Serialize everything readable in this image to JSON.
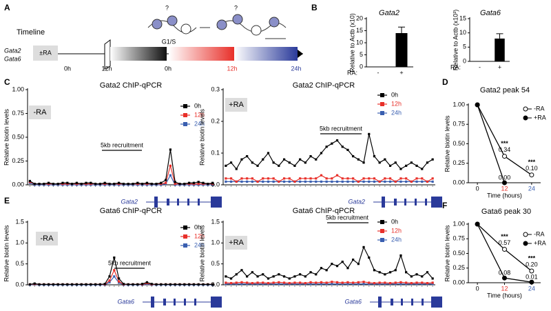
{
  "timeline": {
    "label": "A",
    "title": "Timeline",
    "genes": [
      "Gata2",
      "Gata6"
    ],
    "treatment": "±RA",
    "stage": "G1/S",
    "question": "?",
    "times": [
      "0h",
      "12h",
      "0h",
      "12h",
      "24h"
    ]
  },
  "chart_data": [
    {
      "type": "bar",
      "label": "B",
      "title": "Gata2",
      "ylabel": "Relative to Actb (x10)",
      "xlabel": "RA:",
      "categories": [
        "-",
        "+"
      ],
      "values": [
        0,
        14
      ],
      "errors": [
        0,
        2.5
      ],
      "color": "#000000",
      "ylim": [
        0,
        20
      ],
      "yticks": [
        0,
        5,
        10,
        15,
        20
      ]
    },
    {
      "type": "bar",
      "title": "Gata6",
      "ylabel": "Relative to Actb (x10³)",
      "xlabel": "RA:",
      "categories": [
        "-",
        "+"
      ],
      "values": [
        0,
        8
      ],
      "errors": [
        0,
        1.7
      ],
      "color": "#000000",
      "ylim": [
        0,
        15
      ],
      "yticks": [
        0,
        5,
        10,
        15
      ]
    },
    {
      "type": "profile",
      "label": "C",
      "title": "Gata2 ChIP-qPCR",
      "ylabel": "Relative biotin levels",
      "condition": "-RA",
      "annotation": "5kb recruitment",
      "gene": "Gata2",
      "series": [
        {
          "name": "0h",
          "color": "#000000",
          "values": [
            0.04,
            0.01,
            0.01,
            0.01,
            0.02,
            0.01,
            0.01,
            0.02,
            0.02,
            0.01,
            0.02,
            0.01,
            0.02,
            0.02,
            0.01,
            0.01,
            0.02,
            0.01,
            0.01,
            0.02,
            0.01,
            0.01,
            0.01,
            0.02,
            0.01,
            0.02,
            0.01,
            0.01,
            0.02,
            0.05,
            0.37,
            0.03,
            0.01,
            0.01,
            0.02,
            0.02,
            0.03,
            0.02,
            0.01,
            0.02
          ]
        },
        {
          "name": "12h",
          "color": "#e8302a",
          "values": [
            0.03,
            0.01,
            0.01,
            0.01,
            0.01,
            0.01,
            0.01,
            0.01,
            0.01,
            0.01,
            0.01,
            0.01,
            0.01,
            0.01,
            0.01,
            0.01,
            0.01,
            0.01,
            0.01,
            0.01,
            0.01,
            0.01,
            0.01,
            0.01,
            0.01,
            0.01,
            0.01,
            0.01,
            0.01,
            0.02,
            0.2,
            0.01,
            0.01,
            0.01,
            0.01,
            0.01,
            0.01,
            0.01,
            0.01,
            0.01
          ]
        },
        {
          "name": "24h",
          "color": "#3a5fb0",
          "values": [
            0.02,
            0,
            0,
            0,
            0,
            0,
            0,
            0,
            0,
            0,
            0,
            0,
            0,
            0,
            0,
            0,
            0,
            0,
            0,
            0,
            0,
            0,
            0,
            0,
            0,
            0,
            0,
            0,
            0,
            0.01,
            0.1,
            0,
            0,
            0,
            0,
            0,
            0,
            0,
            0,
            0
          ]
        }
      ],
      "ylim": [
        0,
        1
      ],
      "yticks": [
        {
          "value": 0,
          "label": "0.00"
        },
        {
          "value": 0.25,
          "label": "0.25"
        },
        {
          "value": 0.5,
          "label": "0.50"
        },
        {
          "value": 0.75,
          "label": "0.75"
        },
        {
          "value": 1,
          "label": "1.00"
        }
      ]
    },
    {
      "type": "profile",
      "title": "Gata2 ChIP-qPCR",
      "ylabel": "Relative biotin levels",
      "condition": "+RA",
      "annotation": "5kb recruitment",
      "gene": "Gata2",
      "series": [
        {
          "name": "0h",
          "color": "#000000",
          "values": [
            0.06,
            0.07,
            0.05,
            0.08,
            0.09,
            0.07,
            0.06,
            0.08,
            0.1,
            0.07,
            0.06,
            0.08,
            0.07,
            0.06,
            0.08,
            0.07,
            0.09,
            0.08,
            0.1,
            0.12,
            0.13,
            0.14,
            0.12,
            0.11,
            0.09,
            0.08,
            0.07,
            0.16,
            0.09,
            0.07,
            0.08,
            0.06,
            0.07,
            0.05,
            0.06,
            0.07,
            0.06,
            0.05,
            0.07,
            0.08
          ]
        },
        {
          "name": "12h",
          "color": "#e8302a",
          "values": [
            0.02,
            0.02,
            0.01,
            0.02,
            0.02,
            0.02,
            0.01,
            0.02,
            0.02,
            0.02,
            0.01,
            0.02,
            0.02,
            0.01,
            0.02,
            0.02,
            0.02,
            0.02,
            0.03,
            0.02,
            0.02,
            0.03,
            0.02,
            0.02,
            0.02,
            0.01,
            0.02,
            0.02,
            0.02,
            0.01,
            0.02,
            0.02,
            0.01,
            0.02,
            0.02,
            0.01,
            0.02,
            0.02,
            0.01,
            0.02
          ]
        },
        {
          "name": "24h",
          "color": "#3a5fb0",
          "values": [
            0.01,
            0.01,
            0.01,
            0.01,
            0.01,
            0.01,
            0.01,
            0.01,
            0.01,
            0.01,
            0.01,
            0.01,
            0.01,
            0.01,
            0.01,
            0.01,
            0.01,
            0.01,
            0.01,
            0.01,
            0.01,
            0.01,
            0.01,
            0.01,
            0.01,
            0.01,
            0.01,
            0.01,
            0.01,
            0.01,
            0.01,
            0.01,
            0.01,
            0.01,
            0.01,
            0.01,
            0.01,
            0.01,
            0.01,
            0.01
          ]
        }
      ],
      "ylim": [
        0,
        0.3
      ],
      "yticks": [
        {
          "value": 0,
          "label": "0.0"
        },
        0.1,
        0.2,
        0.3
      ]
    },
    {
      "type": "time",
      "label": "D",
      "title": "Gata2 peak 54",
      "ylabel": "Relative biotin levels",
      "xlabel": "Time (hours)",
      "x": [
        0,
        12,
        24
      ],
      "xlim": [
        -4,
        28
      ],
      "xticks": [
        0,
        12,
        24
      ],
      "xtick_colors": [
        "#000000",
        "#e8302a",
        "#3a5fb0"
      ],
      "series": [
        {
          "name": "-RA",
          "color": "#000000",
          "marker": "open",
          "values": [
            1,
            0.34,
            0.1
          ],
          "value_labels": [
            null,
            "0.34",
            "0.10"
          ]
        },
        {
          "name": "+RA",
          "color": "#000000",
          "marker": "filled",
          "values": [
            1,
            0,
            null
          ],
          "value_labels": [
            null,
            "0.00",
            null
          ]
        }
      ],
      "annotations": [
        "***",
        "***"
      ],
      "ylim": [
        0,
        1
      ],
      "yticks": [
        {
          "value": 0,
          "label": "0.00"
        },
        {
          "value": 0.25,
          "label": "0.25"
        },
        {
          "value": 0.5,
          "label": "0.50"
        },
        {
          "value": 0.75,
          "label": "0.75"
        },
        {
          "value": 1,
          "label": "1.00"
        }
      ]
    },
    {
      "type": "profile",
      "label": "E",
      "title": "Gata6 ChIP-qPCR",
      "ylabel": "Relative biotin levels",
      "condition": "-RA",
      "annotation": "5kb recruitment",
      "gene": "Gata6",
      "series": [
        {
          "name": "0h",
          "color": "#000000",
          "values": [
            0.01,
            0.03,
            0.01,
            0.01,
            0.01,
            0.01,
            0.01,
            0.01,
            0.01,
            0.01,
            0.01,
            0.01,
            0.01,
            0.01,
            0.01,
            0.01,
            0.02,
            0.2,
            0.65,
            0.15,
            0.02,
            0.01,
            0.01,
            0.01,
            0.02,
            0.06,
            0.02,
            0.01,
            0.01,
            0.01,
            0.01,
            0.01,
            0.01,
            0.01,
            0.01,
            0.01,
            0.01,
            0.01,
            0.01,
            0.01
          ]
        },
        {
          "name": "12h",
          "color": "#e8302a",
          "values": [
            0.01,
            0.02,
            0.01,
            0.01,
            0.01,
            0.01,
            0.01,
            0.01,
            0.01,
            0.01,
            0.01,
            0.01,
            0.01,
            0.01,
            0.01,
            0.01,
            0.01,
            0.1,
            0.35,
            0.08,
            0.01,
            0.01,
            0.01,
            0.01,
            0.01,
            0.04,
            0.01,
            0.01,
            0.01,
            0.01,
            0.01,
            0.01,
            0.01,
            0.01,
            0.01,
            0.01,
            0.01,
            0.01,
            0.01,
            0.01
          ]
        },
        {
          "name": "24h",
          "color": "#3a5fb0",
          "values": [
            0,
            0.01,
            0,
            0,
            0,
            0,
            0,
            0,
            0,
            0,
            0,
            0,
            0,
            0,
            0,
            0,
            0,
            0.06,
            0.2,
            0.05,
            0,
            0,
            0,
            0,
            0,
            0.02,
            0,
            0,
            0,
            0,
            0,
            0,
            0,
            0,
            0,
            0,
            0,
            0,
            0,
            0
          ]
        }
      ],
      "ylim": [
        0,
        1.5
      ],
      "yticks": [
        {
          "value": 0,
          "label": "0.0"
        },
        0.5,
        {
          "value": 1,
          "label": "1.0"
        },
        1.5
      ]
    },
    {
      "type": "profile",
      "title": "Gata6 ChIP-qPCR",
      "ylabel": "Relative biotin levels",
      "condition": "+RA",
      "annotation": "5kb recruitment",
      "gene": "Gata6",
      "series": [
        {
          "name": "0h",
          "color": "#000000",
          "values": [
            0.2,
            0.15,
            0.25,
            0.35,
            0.2,
            0.3,
            0.2,
            0.25,
            0.15,
            0.2,
            0.25,
            0.2,
            0.15,
            0.2,
            0.25,
            0.2,
            0.3,
            0.25,
            0.4,
            0.35,
            0.5,
            0.45,
            0.55,
            0.4,
            0.6,
            0.5,
            0.9,
            0.65,
            0.35,
            0.3,
            0.25,
            0.3,
            0.35,
            0.7,
            0.3,
            0.2,
            0.25,
            0.2,
            0.3,
            0.15
          ]
        },
        {
          "name": "12h",
          "color": "#e8302a",
          "values": [
            0.05,
            0.04,
            0.05,
            0.06,
            0.05,
            0.04,
            0.05,
            0.05,
            0.04,
            0.05,
            0.06,
            0.05,
            0.04,
            0.05,
            0.05,
            0.04,
            0.06,
            0.05,
            0.06,
            0.05,
            0.07,
            0.06,
            0.05,
            0.06,
            0.05,
            0.06,
            0.07,
            0.05,
            0.04,
            0.05,
            0.05,
            0.04,
            0.05,
            0.06,
            0.05,
            0.04,
            0.05,
            0.05,
            0.04,
            0.05
          ]
        },
        {
          "name": "24h",
          "color": "#3a5fb0",
          "values": [
            0.02,
            0.02,
            0.02,
            0.02,
            0.02,
            0.02,
            0.02,
            0.02,
            0.02,
            0.02,
            0.02,
            0.02,
            0.02,
            0.02,
            0.02,
            0.02,
            0.02,
            0.02,
            0.02,
            0.02,
            0.02,
            0.02,
            0.02,
            0.02,
            0.02,
            0.02,
            0.02,
            0.02,
            0.02,
            0.02,
            0.02,
            0.02,
            0.02,
            0.02,
            0.02,
            0.02,
            0.02,
            0.02,
            0.02,
            0.02
          ]
        }
      ],
      "ylim": [
        0,
        1.5
      ],
      "yticks": [
        {
          "value": 0,
          "label": "0.0"
        },
        0.5,
        {
          "value": 1,
          "label": "1.0"
        },
        1.5
      ]
    },
    {
      "type": "time",
      "label": "F",
      "title": "Gata6 peak 30",
      "ylabel": "Relative biotin levels",
      "xlabel": "Time (hours)",
      "x": [
        0,
        12,
        24
      ],
      "xlim": [
        -4,
        28
      ],
      "xticks": [
        0,
        12,
        24
      ],
      "xtick_colors": [
        "#000000",
        "#e8302a",
        "#3a5fb0"
      ],
      "series": [
        {
          "name": "-RA",
          "color": "#000000",
          "marker": "open",
          "values": [
            1,
            0.57,
            0.2
          ],
          "value_labels": [
            null,
            "0.57",
            "0.20"
          ]
        },
        {
          "name": "+RA",
          "color": "#000000",
          "marker": "filled",
          "values": [
            1,
            0.08,
            0.01
          ],
          "value_labels": [
            null,
            "0.08",
            "0.01"
          ]
        }
      ],
      "annotations": [
        "***",
        "***"
      ],
      "ylim": [
        0,
        1
      ],
      "yticks": [
        {
          "value": 0,
          "label": "0.00"
        },
        {
          "value": 0.25,
          "label": "0.25"
        },
        {
          "value": 0.5,
          "label": "0.50"
        },
        {
          "value": 0.75,
          "label": "0.75"
        },
        {
          "value": 1,
          "label": "1.00"
        }
      ]
    }
  ]
}
